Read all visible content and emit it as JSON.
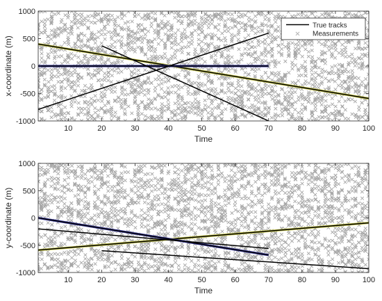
{
  "legend": {
    "true_tracks_label": "True tracks",
    "measurements_label": "Measurements"
  },
  "colors": {
    "track": "#000000",
    "measurement": "#a6a6a6",
    "axis": "#262626",
    "track_highlight_yellow": "#c8c84a",
    "track_highlight_blue": "#3a3a9a"
  },
  "chart_data": [
    {
      "type": "line",
      "xlabel": "Time",
      "ylabel": "x-coordinate (m)",
      "xlim": [
        1,
        100
      ],
      "ylim": [
        -1000,
        1000
      ],
      "xticks": [
        10,
        20,
        30,
        40,
        50,
        60,
        70,
        80,
        90,
        100
      ],
      "yticks": [
        -1000,
        -500,
        0,
        500,
        1000
      ],
      "legend_position": "top-right",
      "grid": false,
      "series": [
        {
          "name": "True tracks",
          "x": [
            1,
            100
          ],
          "y": [
            400,
            -590
          ],
          "highlight": "yellow"
        },
        {
          "x": [
            1,
            70
          ],
          "y": [
            0,
            0
          ],
          "highlight": "blue"
        },
        {
          "x": [
            1,
            70
          ],
          "y": [
            -790,
            600
          ]
        },
        {
          "x": [
            20,
            70
          ],
          "y": [
            370,
            -1000
          ]
        }
      ],
      "measurements": {
        "name": "Measurements",
        "marker": "x",
        "distribution": "dense uniform clutter over full axis range at every time step",
        "y_range": [
          -1000,
          1000
        ]
      }
    },
    {
      "type": "line",
      "xlabel": "Time",
      "ylabel": "y-coordinate (m)",
      "xlim": [
        1,
        100
      ],
      "ylim": [
        -1000,
        1000
      ],
      "xticks": [
        10,
        20,
        30,
        40,
        50,
        60,
        70,
        80,
        90,
        100
      ],
      "yticks": [
        -1000,
        -500,
        0,
        500,
        1000
      ],
      "grid": false,
      "series": [
        {
          "x": [
            1,
            100
          ],
          "y": [
            -590,
            -90
          ],
          "highlight": "yellow"
        },
        {
          "x": [
            1,
            70
          ],
          "y": [
            0,
            -680
          ],
          "highlight": "blue"
        },
        {
          "x": [
            1,
            70
          ],
          "y": [
            -200,
            -560
          ]
        },
        {
          "x": [
            20,
            100
          ],
          "y": [
            -600,
            -930
          ]
        }
      ],
      "measurements": {
        "marker": "x",
        "distribution": "dense uniform clutter over full axis range at every time step",
        "y_range": [
          -1000,
          1000
        ]
      }
    }
  ]
}
